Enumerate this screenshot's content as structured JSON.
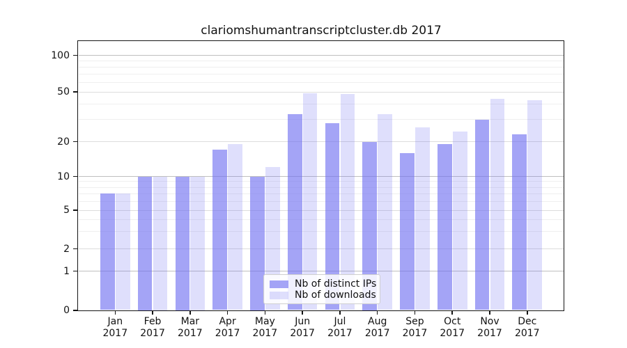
{
  "title": "clariomshumantranscriptcluster.db 2017",
  "chart_data": {
    "type": "bar",
    "title": "clariomshumantranscriptcluster.db 2017",
    "categories": [
      "Jan",
      "Feb",
      "Mar",
      "Apr",
      "May",
      "Jun",
      "Jul",
      "Aug",
      "Sep",
      "Oct",
      "Nov",
      "Dec"
    ],
    "x_tick_second_line": "2017",
    "series": [
      {
        "name": "Nb of distinct IPs",
        "color": "rgba(108,108,241,0.62)",
        "values": [
          7,
          10,
          10,
          17,
          10,
          33,
          28,
          20,
          16,
          19,
          30,
          23
        ]
      },
      {
        "name": "Nb of downloads",
        "color": "rgba(108,108,241,0.22)",
        "values": [
          7,
          10,
          10,
          19,
          12,
          49,
          48,
          33,
          26,
          24,
          44,
          43
        ]
      }
    ],
    "yscale": "symlog",
    "ylim": [
      0,
      120
    ],
    "y_ticks": [
      0,
      1,
      2,
      5,
      10,
      20,
      50,
      100
    ],
    "y_minor_ticks": [
      3,
      4,
      6,
      7,
      8,
      9,
      30,
      40,
      60,
      70,
      80,
      90
    ],
    "grid": true,
    "legend_position": "lower center",
    "colors": {
      "distinct_ips_bar": "rgba(108,108,241,0.62)",
      "downloads_bar": "rgba(108,108,241,0.22)",
      "grid_decade": "#bfbfbf",
      "grid_major": "#dcdcdc",
      "grid_minor": "#efefef",
      "axis": "#141414"
    }
  },
  "legend": {
    "items": [
      {
        "label": "Nb of distinct IPs"
      },
      {
        "label": "Nb of downloads"
      }
    ]
  }
}
